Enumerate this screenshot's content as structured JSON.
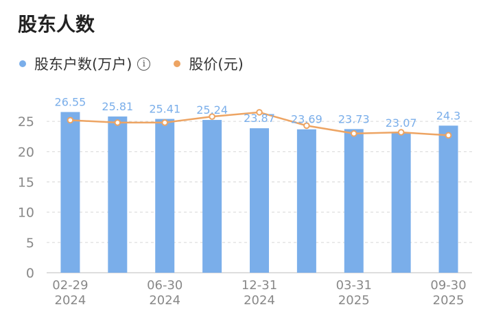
{
  "title": "股东人数",
  "legend": {
    "holders_label": "股东户数(万户)",
    "price_label": "股价(元)",
    "info_icon": "info-icon"
  },
  "colors": {
    "bar": "#7aaeea",
    "line": "#eda463",
    "bar_label": "#7aaeea",
    "axis_text": "#888888",
    "grid": "#d6d6d6"
  },
  "chart_data": {
    "type": "bar",
    "categories": [
      "02-29\n2024",
      "",
      "06-30\n2024",
      "",
      "12-31\n2024",
      "",
      "03-31\n2025",
      "",
      "09-30\n2025"
    ],
    "series": [
      {
        "name": "股东户数(万户)",
        "type": "bar",
        "values": [
          26.55,
          25.81,
          25.41,
          25.24,
          23.87,
          23.69,
          23.73,
          23.07,
          24.3
        ]
      },
      {
        "name": "股价(元)",
        "type": "line",
        "values": [
          25.2,
          24.8,
          24.8,
          25.8,
          26.5,
          24.3,
          23.0,
          23.2,
          22.7
        ]
      }
    ],
    "yticks": [
      0,
      5,
      10,
      15,
      20,
      25
    ],
    "ylim": [
      0,
      30
    ],
    "grid": true
  }
}
